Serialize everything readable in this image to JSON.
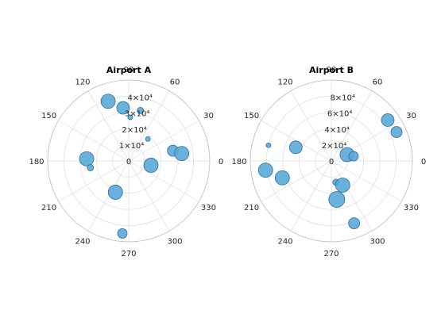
{
  "chart_data": [
    {
      "type": "scatter",
      "polar": true,
      "title": "Airport A",
      "theta_ticks": [
        "0",
        "30",
        "60",
        "90",
        "120",
        "150",
        "180",
        "210",
        "240",
        "270",
        "300",
        "330"
      ],
      "r_ticks": [
        {
          "value": 0,
          "label": "0"
        },
        {
          "value": 10000,
          "label": "1×10⁴"
        },
        {
          "value": 20000,
          "label": "2×10⁴"
        },
        {
          "value": 30000,
          "label": "3×10⁴"
        },
        {
          "value": 40000,
          "label": "4×10⁴"
        }
      ],
      "rlim": [
        0,
        50000
      ],
      "grid": true,
      "marker_color": "#5aa8d8",
      "marker_edge": "#2a6fa8",
      "points": [
        {
          "theta": 109,
          "r": 39000,
          "size": 9
        },
        {
          "theta": 96,
          "r": 33000,
          "size": 8
        },
        {
          "theta": 77,
          "r": 32000,
          "size": 4
        },
        {
          "theta": 88,
          "r": 27000,
          "size": 3
        },
        {
          "theta": 49,
          "r": 18000,
          "size": 3
        },
        {
          "theta": 13,
          "r": 28000,
          "size": 7
        },
        {
          "theta": 8,
          "r": 33000,
          "size": 9
        },
        {
          "theta": 349,
          "r": 14000,
          "size": 9
        },
        {
          "theta": 177,
          "r": 26000,
          "size": 9
        },
        {
          "theta": 190,
          "r": 24000,
          "size": 4
        },
        {
          "theta": 247,
          "r": 21000,
          "size": 9
        },
        {
          "theta": 265,
          "r": 45000,
          "size": 6
        }
      ]
    },
    {
      "type": "scatter",
      "polar": true,
      "title": "Airport B",
      "theta_ticks": [
        "0",
        "30",
        "60",
        "90",
        "120",
        "150",
        "180",
        "210",
        "240",
        "270",
        "300",
        "330"
      ],
      "r_ticks": [
        {
          "value": 0,
          "label": "0"
        },
        {
          "value": 20000,
          "label": "2×10⁴"
        },
        {
          "value": 40000,
          "label": "4×10⁴"
        },
        {
          "value": 60000,
          "label": "6×10⁴"
        },
        {
          "value": 80000,
          "label": "8×10⁴"
        }
      ],
      "rlim": [
        0,
        100000
      ],
      "grid": true,
      "marker_color": "#5aa8d8",
      "marker_edge": "#2a6fa8",
      "points": [
        {
          "theta": 36,
          "r": 86000,
          "size": 8
        },
        {
          "theta": 24,
          "r": 88000,
          "size": 7
        },
        {
          "theta": 22,
          "r": 21000,
          "size": 9
        },
        {
          "theta": 12,
          "r": 28000,
          "size": 6
        },
        {
          "theta": 159,
          "r": 47000,
          "size": 8
        },
        {
          "theta": 166,
          "r": 80000,
          "size": 3
        },
        {
          "theta": 188,
          "r": 82000,
          "size": 9
        },
        {
          "theta": 199,
          "r": 64000,
          "size": 9
        },
        {
          "theta": 282,
          "r": 27000,
          "size": 4
        },
        {
          "theta": 295,
          "r": 33000,
          "size": 9
        },
        {
          "theta": 278,
          "r": 48000,
          "size": 10
        },
        {
          "theta": 290,
          "r": 82000,
          "size": 7
        }
      ]
    }
  ]
}
